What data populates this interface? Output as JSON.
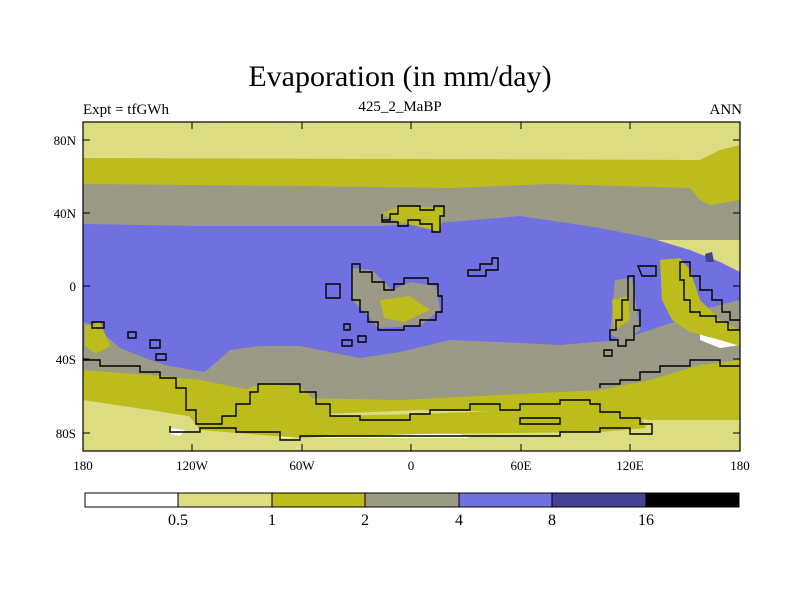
{
  "title": "Evaporation (in mm/day)",
  "experiment_label": "Expt = tfGWh",
  "subtitle": "425_2_MaBP",
  "season": "ANN",
  "lat_ticks": [
    "80N",
    "40N",
    "0",
    "40S",
    "80S"
  ],
  "lon_ticks": [
    "180",
    "120W",
    "60W",
    "0",
    "60E",
    "120E",
    "180"
  ],
  "colorbar": {
    "colors": [
      "#ffffff",
      "#dcdc82",
      "#bcbc1c",
      "#9a9a86",
      "#7070e0",
      "#434392",
      "#000000"
    ],
    "labels": [
      "0.5",
      "1",
      "2",
      "4",
      "8",
      "16"
    ]
  },
  "colors": {
    "lt_half": "#ffffff",
    "c_half_1": "#dcdc82",
    "c_1_2": "#bcbc1c",
    "c_2_4": "#9a9a86",
    "c_4_8": "#7070e0",
    "c_8_16": "#434392"
  }
}
